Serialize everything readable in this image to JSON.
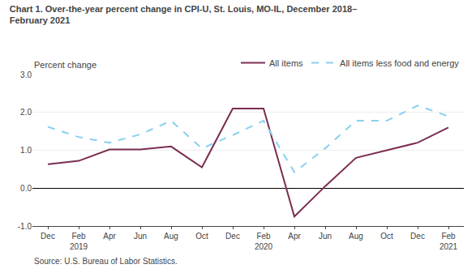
{
  "chart_data": {
    "type": "line",
    "title": "Chart 1. Over-the-year percent change in CPI-U, St. Louis, MO-IL, December 2018–\nFebruary 2021",
    "y_label": "Percent change",
    "annotations": [
      "Source: U.S. Bureau of Labor Statistics."
    ],
    "categories": [
      "Dec",
      "Feb\n2019",
      "Apr",
      "Jun",
      "Aug",
      "Oct",
      "Dec",
      "Feb\n2020",
      "Apr",
      "Jun",
      "Aug",
      "Oct",
      "Dec",
      "Feb\n2021"
    ],
    "series": [
      {
        "name": "All items",
        "color": "#7b2d52",
        "line_style": "solid",
        "values": [
          0.63,
          0.72,
          1.02,
          1.02,
          1.1,
          0.55,
          2.1,
          2.1,
          -0.75,
          0.05,
          0.8,
          1.0,
          1.2,
          1.6
        ]
      },
      {
        "name": "All items less food and energy",
        "color": "#89cff0",
        "line_style": "dashed",
        "values": [
          1.62,
          1.35,
          1.2,
          1.42,
          1.78,
          1.05,
          1.4,
          1.78,
          0.42,
          1.05,
          1.78,
          1.78,
          2.18,
          1.9
        ]
      }
    ],
    "ylim": [
      -1.0,
      3.0
    ],
    "yticks": [
      {
        "value": -1.0,
        "label": "-1.0"
      },
      {
        "value": 0.0,
        "label": "0.0"
      },
      {
        "value": 1.0,
        "label": "1.0"
      },
      {
        "value": 2.0,
        "label": "2.0"
      },
      {
        "value": 3.0,
        "label": "3.0"
      }
    ],
    "grid": true,
    "legend": "top right"
  }
}
